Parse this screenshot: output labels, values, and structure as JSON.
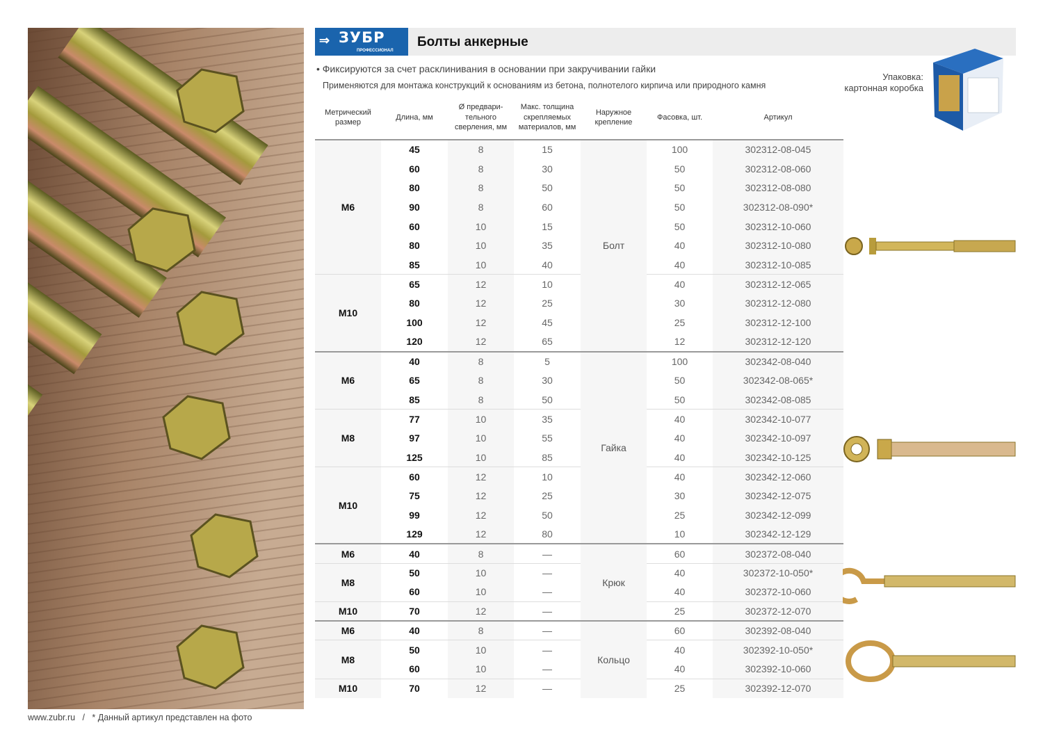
{
  "header": {
    "brand": "ЗУБР",
    "brand_sub": "ПРОФЕССИОНАЛ",
    "title": "Болты анкерные",
    "bullet": "• Фиксируются за счет расклинивания в основании при закручивании гайки",
    "description": "Применяются для монтажа конструкций к основаниям из бетона, полнотелого кирпича или природного камня"
  },
  "packaging": {
    "label": "Упаковка:",
    "value": "картонная коробка"
  },
  "colors": {
    "brand_blue": "#1a64ad",
    "header_bar": "#ededed",
    "column_shade": "#f6f6f6"
  },
  "table": {
    "headers": [
      "Метрический размер",
      "Длина, мм",
      "Ø предвари-тельного сверления, мм",
      "Макс. толщина скрепляемых материалов, мм",
      "Наружное крепление",
      "Фасовка, шт.",
      "Артикул"
    ],
    "types": [
      {
        "name": "Болт",
        "groups": [
          {
            "size": "М6",
            "rows": [
              [
                "45",
                "8",
                "15",
                "100",
                "302312-08-045"
              ],
              [
                "60",
                "8",
                "30",
                "50",
                "302312-08-060"
              ],
              [
                "80",
                "8",
                "50",
                "50",
                "302312-08-080"
              ],
              [
                "90",
                "8",
                "60",
                "50",
                "302312-08-090*"
              ],
              [
                "60",
                "10",
                "15",
                "50",
                "302312-10-060"
              ],
              [
                "80",
                "10",
                "35",
                "40",
                "302312-10-080"
              ],
              [
                "85",
                "10",
                "40",
                "40",
                "302312-10-085"
              ]
            ]
          },
          {
            "size": "М10",
            "rows": [
              [
                "65",
                "12",
                "10",
                "40",
                "302312-12-065"
              ],
              [
                "80",
                "12",
                "25",
                "30",
                "302312-12-080"
              ],
              [
                "100",
                "12",
                "45",
                "25",
                "302312-12-100"
              ],
              [
                "120",
                "12",
                "65",
                "12",
                "302312-12-120"
              ]
            ]
          }
        ]
      },
      {
        "name": "Гайка",
        "groups": [
          {
            "size": "М6",
            "rows": [
              [
                "40",
                "8",
                "5",
                "100",
                "302342-08-040"
              ],
              [
                "65",
                "8",
                "30",
                "50",
                "302342-08-065*"
              ],
              [
                "85",
                "8",
                "50",
                "50",
                "302342-08-085"
              ]
            ]
          },
          {
            "size": "М8",
            "rows": [
              [
                "77",
                "10",
                "35",
                "40",
                "302342-10-077"
              ],
              [
                "97",
                "10",
                "55",
                "40",
                "302342-10-097"
              ],
              [
                "125",
                "10",
                "85",
                "40",
                "302342-10-125"
              ]
            ]
          },
          {
            "size": "М10",
            "rows": [
              [
                "60",
                "12",
                "10",
                "40",
                "302342-12-060"
              ],
              [
                "75",
                "12",
                "25",
                "30",
                "302342-12-075"
              ],
              [
                "99",
                "12",
                "50",
                "25",
                "302342-12-099"
              ],
              [
                "129",
                "12",
                "80",
                "10",
                "302342-12-129"
              ]
            ]
          }
        ]
      },
      {
        "name": "Крюк",
        "groups": [
          {
            "size": "М6",
            "rows": [
              [
                "40",
                "8",
                "—",
                "60",
                "302372-08-040"
              ]
            ]
          },
          {
            "size": "М8",
            "rows": [
              [
                "50",
                "10",
                "—",
                "40",
                "302372-10-050*"
              ],
              [
                "60",
                "10",
                "—",
                "40",
                "302372-10-060"
              ]
            ]
          },
          {
            "size": "М10",
            "rows": [
              [
                "70",
                "12",
                "—",
                "25",
                "302372-12-070"
              ]
            ]
          }
        ]
      },
      {
        "name": "Кольцо",
        "groups": [
          {
            "size": "М6",
            "rows": [
              [
                "40",
                "8",
                "—",
                "60",
                "302392-08-040"
              ]
            ]
          },
          {
            "size": "М8",
            "rows": [
              [
                "50",
                "10",
                "—",
                "40",
                "302392-10-050*"
              ],
              [
                "60",
                "10",
                "—",
                "40",
                "302392-10-060"
              ]
            ]
          },
          {
            "size": "М10",
            "rows": [
              [
                "70",
                "12",
                "—",
                "25",
                "302392-12-070"
              ]
            ]
          }
        ]
      }
    ]
  },
  "footer": {
    "site": "www.zubr.ru",
    "separator": "/",
    "note": "* Данный артикул представлен на фото"
  }
}
